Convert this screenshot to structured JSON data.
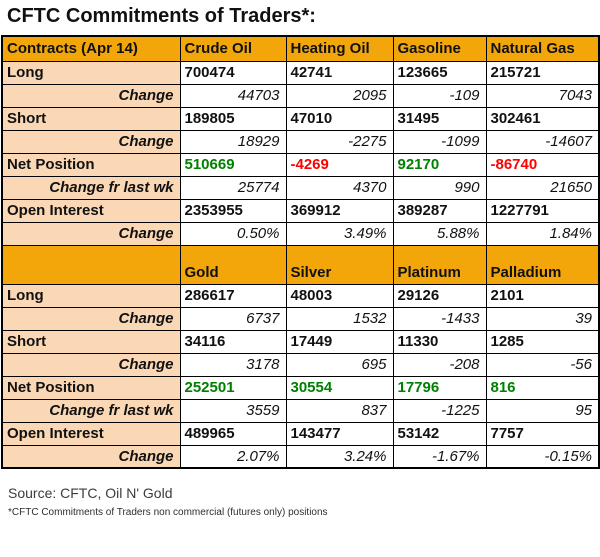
{
  "title": "CFTC Commitments of Traders*:",
  "colors": {
    "header_bg": "#F3A60A",
    "label_bg": "#FAD8B5",
    "positive": "#008000",
    "negative": "#FF0000"
  },
  "chart_data": {
    "type": "table",
    "title": "CFTC Commitments of Traders*:",
    "sections": [
      {
        "columns": [
          "Contracts (Apr 14)",
          "Crude Oil",
          "Heating Oil",
          "Gasoline",
          "Natural Gas"
        ],
        "rows": [
          {
            "label": "Long",
            "style": "main",
            "values": [
              "700474",
              "42741",
              "123665",
              "215721"
            ]
          },
          {
            "label": "Change",
            "style": "change",
            "values": [
              "44703",
              "2095",
              "-109",
              "7043"
            ]
          },
          {
            "label": "Short",
            "style": "main",
            "values": [
              "189805",
              "47010",
              "31495",
              "302461"
            ]
          },
          {
            "label": "Change",
            "style": "change",
            "values": [
              "18929",
              "-2275",
              "-1099",
              "-14607"
            ]
          },
          {
            "label": "Net Position",
            "style": "net",
            "values": [
              "510669",
              "-4269",
              "92170",
              "-86740"
            ]
          },
          {
            "label": "Change fr last wk",
            "style": "change",
            "values": [
              "25774",
              "4370",
              "990",
              "21650"
            ]
          },
          {
            "label": "Open Interest",
            "style": "main",
            "values": [
              "2353955",
              "369912",
              "389287",
              "1227791"
            ]
          },
          {
            "label": "Change",
            "style": "change",
            "values": [
              "0.50%",
              "3.49%",
              "5.88%",
              "1.84%"
            ]
          }
        ]
      },
      {
        "columns": [
          "",
          "Gold",
          "Silver",
          "Platinum",
          "Palladium"
        ],
        "rows": [
          {
            "label": "Long",
            "style": "main",
            "values": [
              "286617",
              "48003",
              "29126",
              "2101"
            ]
          },
          {
            "label": "Change",
            "style": "change",
            "values": [
              "6737",
              "1532",
              "-1433",
              "39"
            ]
          },
          {
            "label": "Short",
            "style": "main",
            "values": [
              "34116",
              "17449",
              "11330",
              "1285"
            ]
          },
          {
            "label": "Change",
            "style": "change",
            "values": [
              "3178",
              "695",
              "-208",
              "-56"
            ]
          },
          {
            "label": "Net Position",
            "style": "net",
            "values": [
              "252501",
              "30554",
              "17796",
              "816"
            ]
          },
          {
            "label": "Change fr last wk",
            "style": "change",
            "values": [
              "3559",
              "837",
              "-1225",
              "95"
            ]
          },
          {
            "label": "Open Interest",
            "style": "main",
            "values": [
              "489965",
              "143477",
              "53142",
              "7757"
            ]
          },
          {
            "label": "Change",
            "style": "change",
            "values": [
              "2.07%",
              "3.24%",
              "-1.67%",
              "-0.15%"
            ]
          }
        ]
      }
    ]
  },
  "footer": {
    "source_line": "Source: CFTC, Oil N' Gold",
    "footnote": "*CFTC Commitments of Traders non commercial (futures only) positions"
  }
}
